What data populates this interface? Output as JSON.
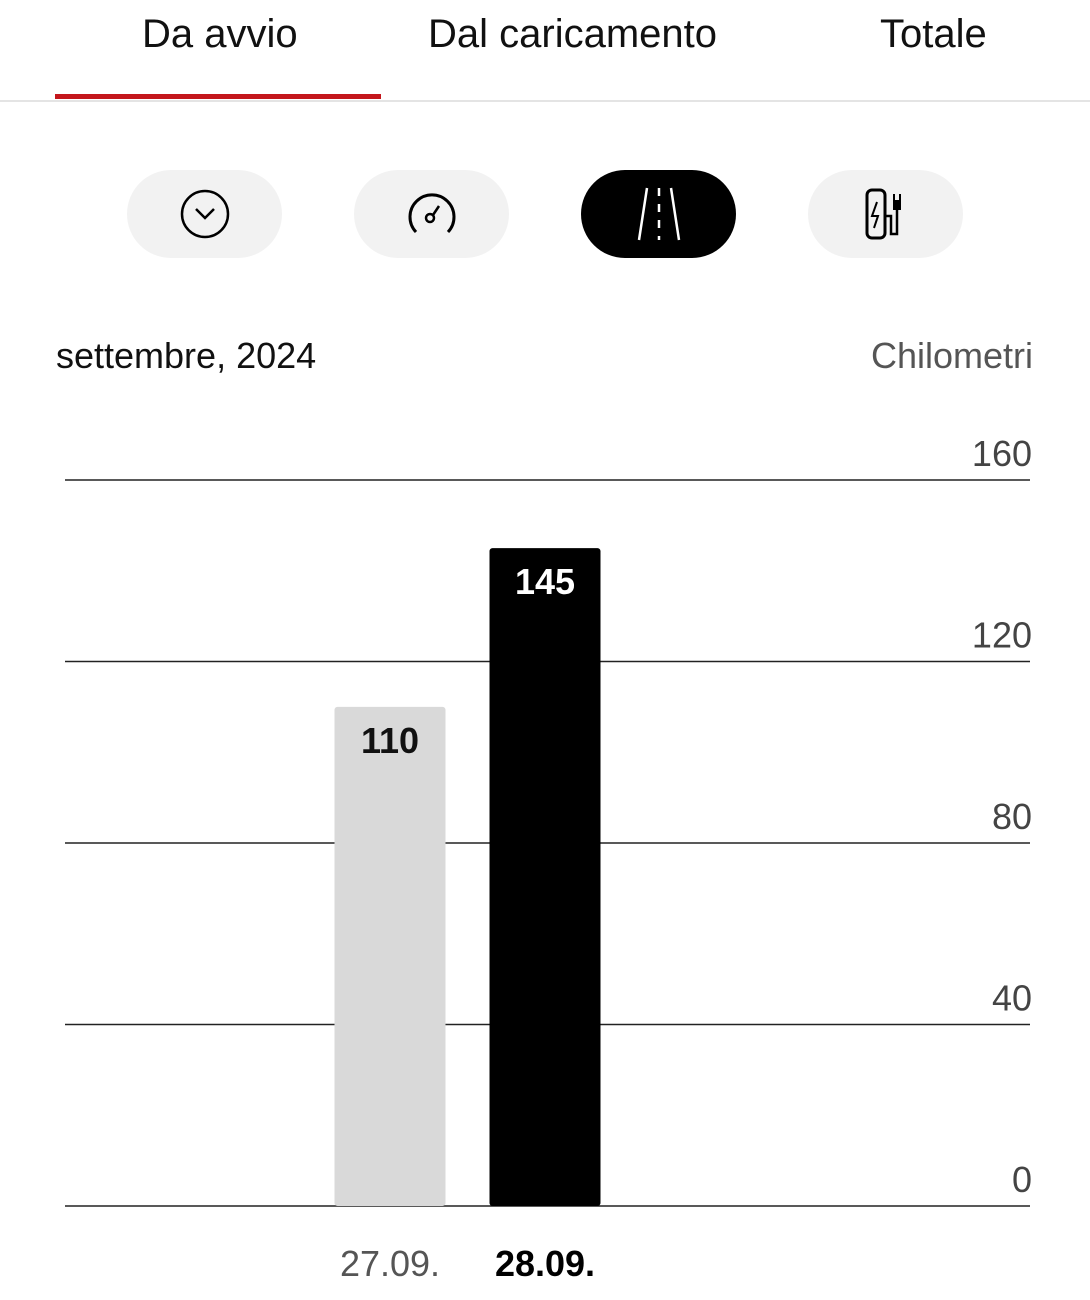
{
  "tabs": [
    {
      "label": "Da avvio",
      "active": true
    },
    {
      "label": "Dal caricamento",
      "active": false
    },
    {
      "label": "Totale",
      "active": false
    }
  ],
  "accent": "#c4161c",
  "filters": [
    {
      "icon": "clock-icon",
      "active": false
    },
    {
      "icon": "speedometer-icon",
      "active": false
    },
    {
      "icon": "road-icon",
      "active": true
    },
    {
      "icon": "charging-station-icon",
      "active": false
    }
  ],
  "header": {
    "period": "settembre, 2024",
    "unit": "Chilometri"
  },
  "chart_data": {
    "type": "bar",
    "categories": [
      "27.09.",
      "28.09."
    ],
    "values": [
      110,
      145
    ],
    "selected": "28.09.",
    "ylabel": "Chilometri",
    "ylim": [
      0,
      160
    ],
    "yticks": [
      0,
      40,
      80,
      120,
      160
    ],
    "grid": true,
    "colors": {
      "default": "#d9d9d9",
      "selected": "#000000"
    }
  }
}
